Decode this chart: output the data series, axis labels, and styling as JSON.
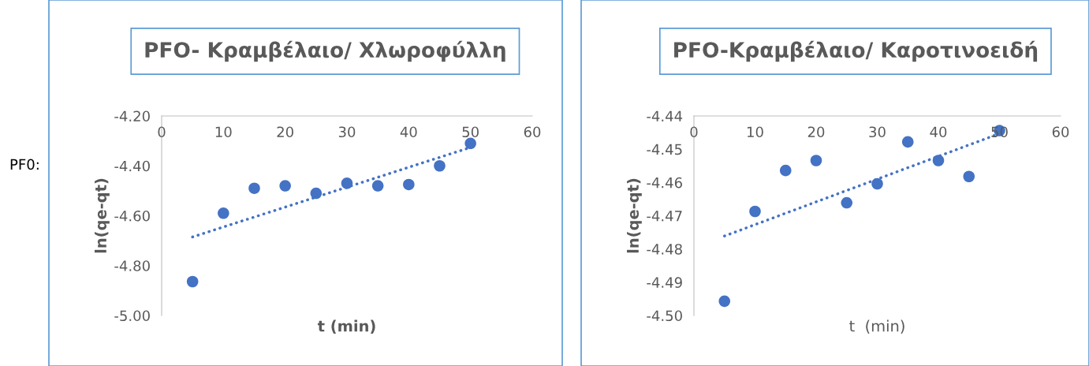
{
  "chart_data": [
    {
      "type": "scatter",
      "title": "PFO- Κραμβέλαιο/ Χλωροφύλλη",
      "xlabel": "t (min)",
      "ylabel": "ln(qe-qt)",
      "annotations": [
        "PF0:"
      ],
      "marker": "circle",
      "grid": false,
      "xlim": [
        0,
        60
      ],
      "xticks": [
        0,
        10,
        20,
        30,
        40,
        50,
        60
      ],
      "ylim": [
        -5.0,
        -4.2
      ],
      "yticks": [
        {
          "value": -5.0,
          "label": "-5.00"
        },
        {
          "value": -4.8,
          "label": "-4.80"
        },
        {
          "value": -4.6,
          "label": "-4.60"
        },
        {
          "value": -4.4,
          "label": "-4.40"
        },
        {
          "value": -4.2,
          "label": "-4.20"
        }
      ],
      "series": [
        {
          "color": "#4472c4",
          "x": [
            5,
            10,
            15,
            20,
            25,
            30,
            35,
            40,
            45,
            50
          ],
          "values": [
            -4.864,
            -4.59,
            -4.49,
            -4.48,
            -4.51,
            -4.47,
            -4.48,
            -4.475,
            -4.4,
            -4.31
          ]
        },
        {
          "type": "line",
          "color": "#4472c4",
          "line_style": "dotted",
          "marker": "none",
          "x": [
            5,
            50
          ],
          "values": [
            -4.685,
            -4.326
          ]
        }
      ]
    },
    {
      "type": "scatter",
      "title": "PFO-Κραμβέλαιο/ Καροτινοειδή",
      "xlabel": "t  (min)",
      "ylabel": "ln(qe-qt)",
      "marker": "circle",
      "grid": false,
      "xlim": [
        0,
        60
      ],
      "xticks": [
        0,
        10,
        20,
        30,
        40,
        50,
        60
      ],
      "ylim": [
        -4.5,
        -4.44
      ],
      "yticks": [
        {
          "value": -4.5,
          "label": "-4.50"
        },
        {
          "value": -4.49,
          "label": "-4.49"
        },
        {
          "value": -4.48,
          "label": "-4.48"
        },
        {
          "value": -4.47,
          "label": "-4.47"
        },
        {
          "value": -4.46,
          "label": "-4.46"
        },
        {
          "value": -4.45,
          "label": "-4.45"
        },
        {
          "value": -4.44,
          "label": "-4.44"
        }
      ],
      "series": [
        {
          "color": "#4472c4",
          "x": [
            5,
            10,
            15,
            20,
            25,
            30,
            35,
            40,
            45,
            50
          ],
          "values": [
            -4.4957,
            -4.4687,
            -4.4564,
            -4.4534,
            -4.4661,
            -4.4604,
            -4.4478,
            -4.4534,
            -4.4582,
            -4.4444
          ]
        },
        {
          "type": "line",
          "color": "#4472c4",
          "line_style": "dotted",
          "marker": "none",
          "x": [
            5,
            50
          ],
          "values": [
            -4.4761,
            -4.4453
          ]
        }
      ]
    }
  ]
}
